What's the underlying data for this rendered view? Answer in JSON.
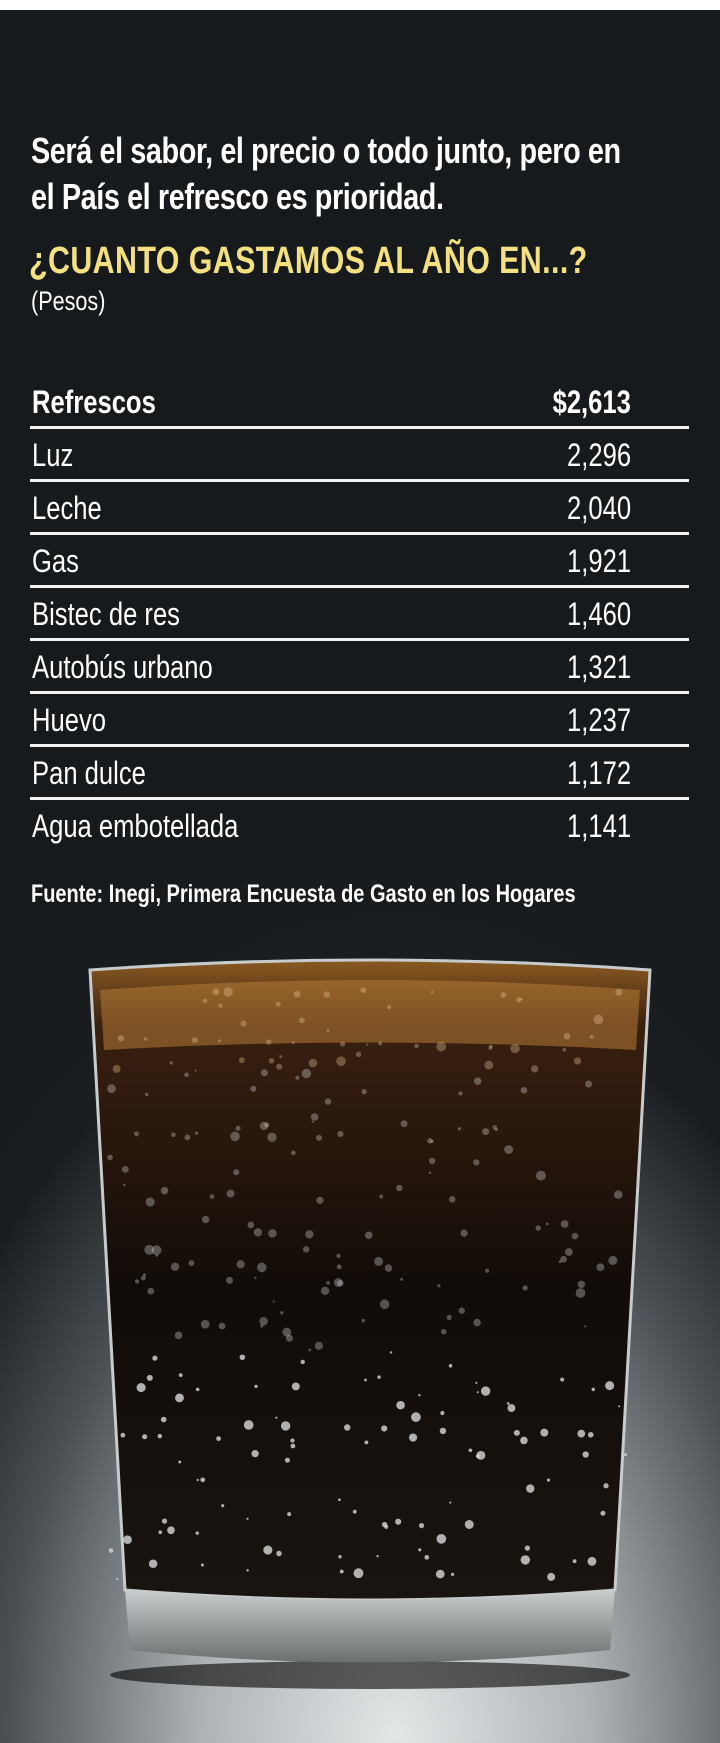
{
  "headline": {
    "line1": "Será el sabor, el precio o todo junto, pero en",
    "line2": "el País el refresco es prioridad."
  },
  "question": "¿CUANTO GASTAMOS AL AÑO EN...?",
  "unit": "(Pesos)",
  "chart_data": {
    "type": "table",
    "title": "¿CUANTO GASTAMOS AL AÑO EN...?",
    "unit": "(Pesos)",
    "rows": [
      {
        "label": "Refrescos",
        "value": 2613,
        "display": "$2,613"
      },
      {
        "label": "Luz",
        "value": 2296,
        "display": "2,296"
      },
      {
        "label": "Leche",
        "value": 2040,
        "display": "2,040"
      },
      {
        "label": "Gas",
        "value": 1921,
        "display": "1,921"
      },
      {
        "label": "Bistec de res",
        "value": 1460,
        "display": "1,460"
      },
      {
        "label": "Autobús urbano",
        "value": 1321,
        "display": "1,321"
      },
      {
        "label": "Huevo",
        "value": 1237,
        "display": "1,237"
      },
      {
        "label": "Pan dulce",
        "value": 1172,
        "display": "1,172"
      },
      {
        "label": "Agua embotellada",
        "value": 1141,
        "display": "1,141"
      }
    ]
  },
  "source": "Fuente: Inegi, Primera Encuesta de Gasto en los Hogares",
  "colors": {
    "background": "#161a1c",
    "accent_yellow": "#f4e07e",
    "text": "#ffffff"
  },
  "image": "glass-of-cola-with-ice"
}
